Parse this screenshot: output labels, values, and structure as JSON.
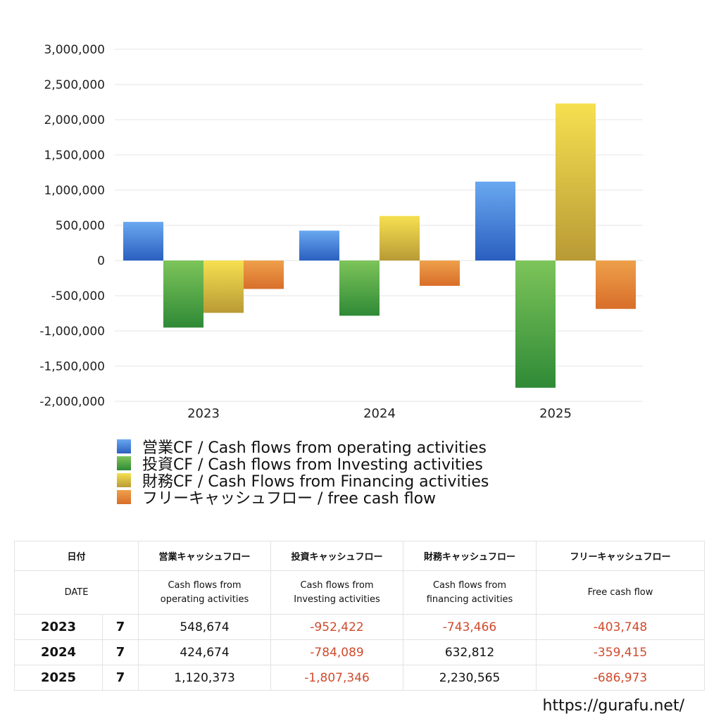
{
  "chart_data": {
    "type": "bar",
    "categories": [
      "2023",
      "2024",
      "2025"
    ],
    "series": [
      {
        "name": "営業CF / Cash flows from operating activities",
        "values": [
          548674,
          424674,
          1120373
        ],
        "color": "#3a7bd5"
      },
      {
        "name": "投資CF / Cash flows from Investing activities",
        "values": [
          -952422,
          -784089,
          -1807346
        ],
        "color": "#4a9e3f"
      },
      {
        "name": "財務CF / Cash Flows from Financing activities",
        "values": [
          -743466,
          632812,
          2230565
        ],
        "color": "#e3c23c"
      },
      {
        "name": "フリーキャッシュフロー / free cash flow",
        "values": [
          -403748,
          -359415,
          -686973
        ],
        "color": "#e2803a"
      }
    ],
    "ylim": [
      -2000000,
      3000000
    ],
    "yticks": [
      3000000,
      2500000,
      2000000,
      1500000,
      1000000,
      500000,
      0,
      -500000,
      -1000000,
      -1500000,
      -2000000
    ],
    "ytick_labels": [
      "3,000,000",
      "2,500,000",
      "2,000,000",
      "1,500,000",
      "1,000,000",
      "500,000",
      "0",
      "-500,000",
      "-1,000,000",
      "-1,500,000",
      "-2,000,000"
    ],
    "grid": true,
    "legend": "bottom"
  },
  "table": {
    "header_jp": [
      "日付",
      "営業キャッシュフロー",
      "投資キャッシュフロー",
      "財務キャッシュフロー",
      "フリーキャッシュフロー"
    ],
    "header_en": [
      "DATE",
      "Cash flows from operating activities",
      "Cash flows from Investing activities",
      "Cash flows from financing activities",
      "Free cash flow"
    ],
    "header_en_lines": [
      [
        "DATE"
      ],
      [
        "Cash flows from",
        "operating activities"
      ],
      [
        "Cash flows from",
        "Investing activities"
      ],
      [
        "Cash flows from",
        "financing activities"
      ],
      [
        "Free cash flow"
      ]
    ],
    "rows": [
      {
        "year": "2023",
        "month": "7",
        "values": [
          "548,674",
          "-952,422",
          "-743,466",
          "-403,748"
        ]
      },
      {
        "year": "2024",
        "month": "7",
        "values": [
          "424,674",
          "-784,089",
          "632,812",
          "-359,415"
        ]
      },
      {
        "year": "2025",
        "month": "7",
        "values": [
          "1,120,373",
          "-1,807,346",
          "2,230,565",
          "-686,973"
        ]
      }
    ]
  },
  "footer": {
    "url": "https://gurafu.net/"
  }
}
